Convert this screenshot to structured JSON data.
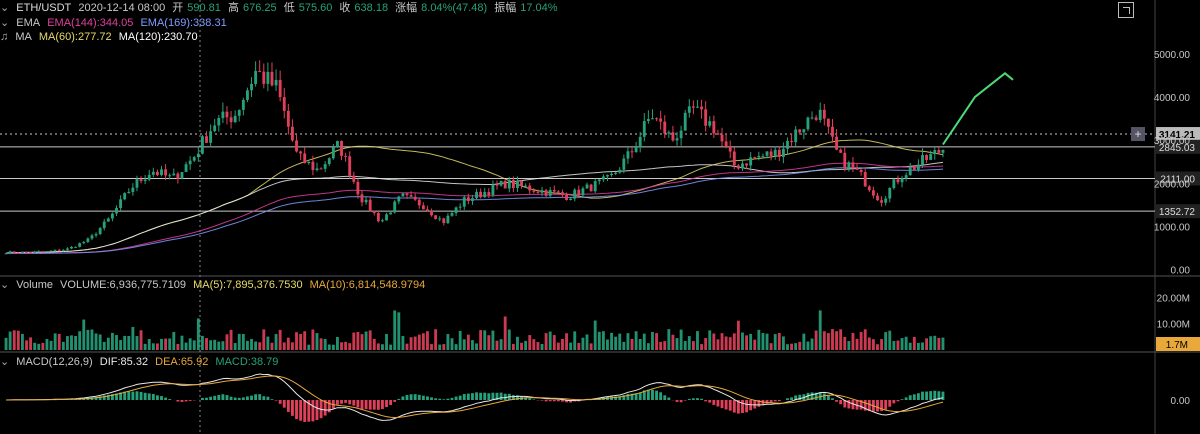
{
  "header": {
    "symbol": "ETH/USDT",
    "datetime": "2020-12-14 08:00",
    "open_label": "开",
    "open": "590.81",
    "high_label": "高",
    "high": "676.25",
    "low_label": "低",
    "low": "575.60",
    "close_label": "收",
    "close": "638.18",
    "change_label": "涨幅",
    "change": "8.04%(47.48)",
    "amplitude_label": "振幅",
    "amplitude": "17.04%"
  },
  "ema_legend": {
    "name": "EMA",
    "ema144": "EMA(144):344.05",
    "ema169": "EMA(169):338.31"
  },
  "ma_legend": {
    "name": "MA",
    "ma60": "MA(60):277.72",
    "ma120": "MA(120):230.70"
  },
  "volume_legend": {
    "name": "Volume",
    "volume": "VOLUME:6,936,775.7109",
    "ma5": "MA(5):7,895,376.7530",
    "ma10": "MA(10):6,814,548.9794"
  },
  "macd_legend": {
    "name": "MACD(12,26,9)",
    "dif": "DIF:85.32",
    "dea": "DEA:65.92",
    "macd": "MACD:38.79"
  },
  "colors": {
    "up": "#26a17b",
    "down": "#e0405a",
    "projection": "#4cd97a",
    "ema144": "#e040a0",
    "ema169": "#7f9cff",
    "ma60": "#e8d86a",
    "ma120": "#e8e8e8",
    "grid": "#c8c8c8",
    "vol_badge": "#e8a93a"
  },
  "chart_data": {
    "type": "candlestick",
    "title": "ETH/USDT",
    "price_axis": {
      "ticks": [
        0,
        1000,
        2000,
        3000,
        4000,
        5000
      ],
      "tick_labels": [
        "0.00",
        "1000.00",
        "2000.00",
        "3000.00",
        "4000.00",
        "5000.00"
      ],
      "range": [
        -150,
        5600
      ]
    },
    "horizontal_levels": [
      {
        "value": 3141.21,
        "label": "3141.21",
        "highlight": true
      },
      {
        "value": 2845.03,
        "label": "2845.03"
      },
      {
        "value": 2111.0,
        "label": "2111.00"
      },
      {
        "value": 1352.72,
        "label": "1352.72"
      }
    ],
    "price_anchors": [
      400,
      400,
      420,
      480,
      700,
      1200,
      1900,
      2300,
      2100,
      2600,
      3400,
      3600,
      4600,
      4200,
      2600,
      2300,
      2900,
      1700,
      1100,
      1700,
      1500,
      1100,
      1600,
      1800,
      2000,
      1900,
      1800,
      1700,
      1900,
      2100,
      2700,
      3600,
      3000,
      3700,
      3300,
      2400,
      2600,
      2700,
      3200,
      3700,
      2600,
      2200,
      1600,
      2200,
      2500,
      2800
    ],
    "projection": [
      [
        2880,
        2900
      ],
      [
        3500,
        4000
      ],
      [
        4250,
        4550
      ],
      [
        4550,
        4400
      ]
    ],
    "volume_axis": {
      "ticks": [
        10000000,
        20000000
      ],
      "tick_labels": [
        "10.00M",
        "20.00M"
      ],
      "current_badge": "1.7M"
    },
    "macd_axis": {
      "ticks": [
        0
      ],
      "tick_labels": [
        "0.00"
      ]
    }
  }
}
